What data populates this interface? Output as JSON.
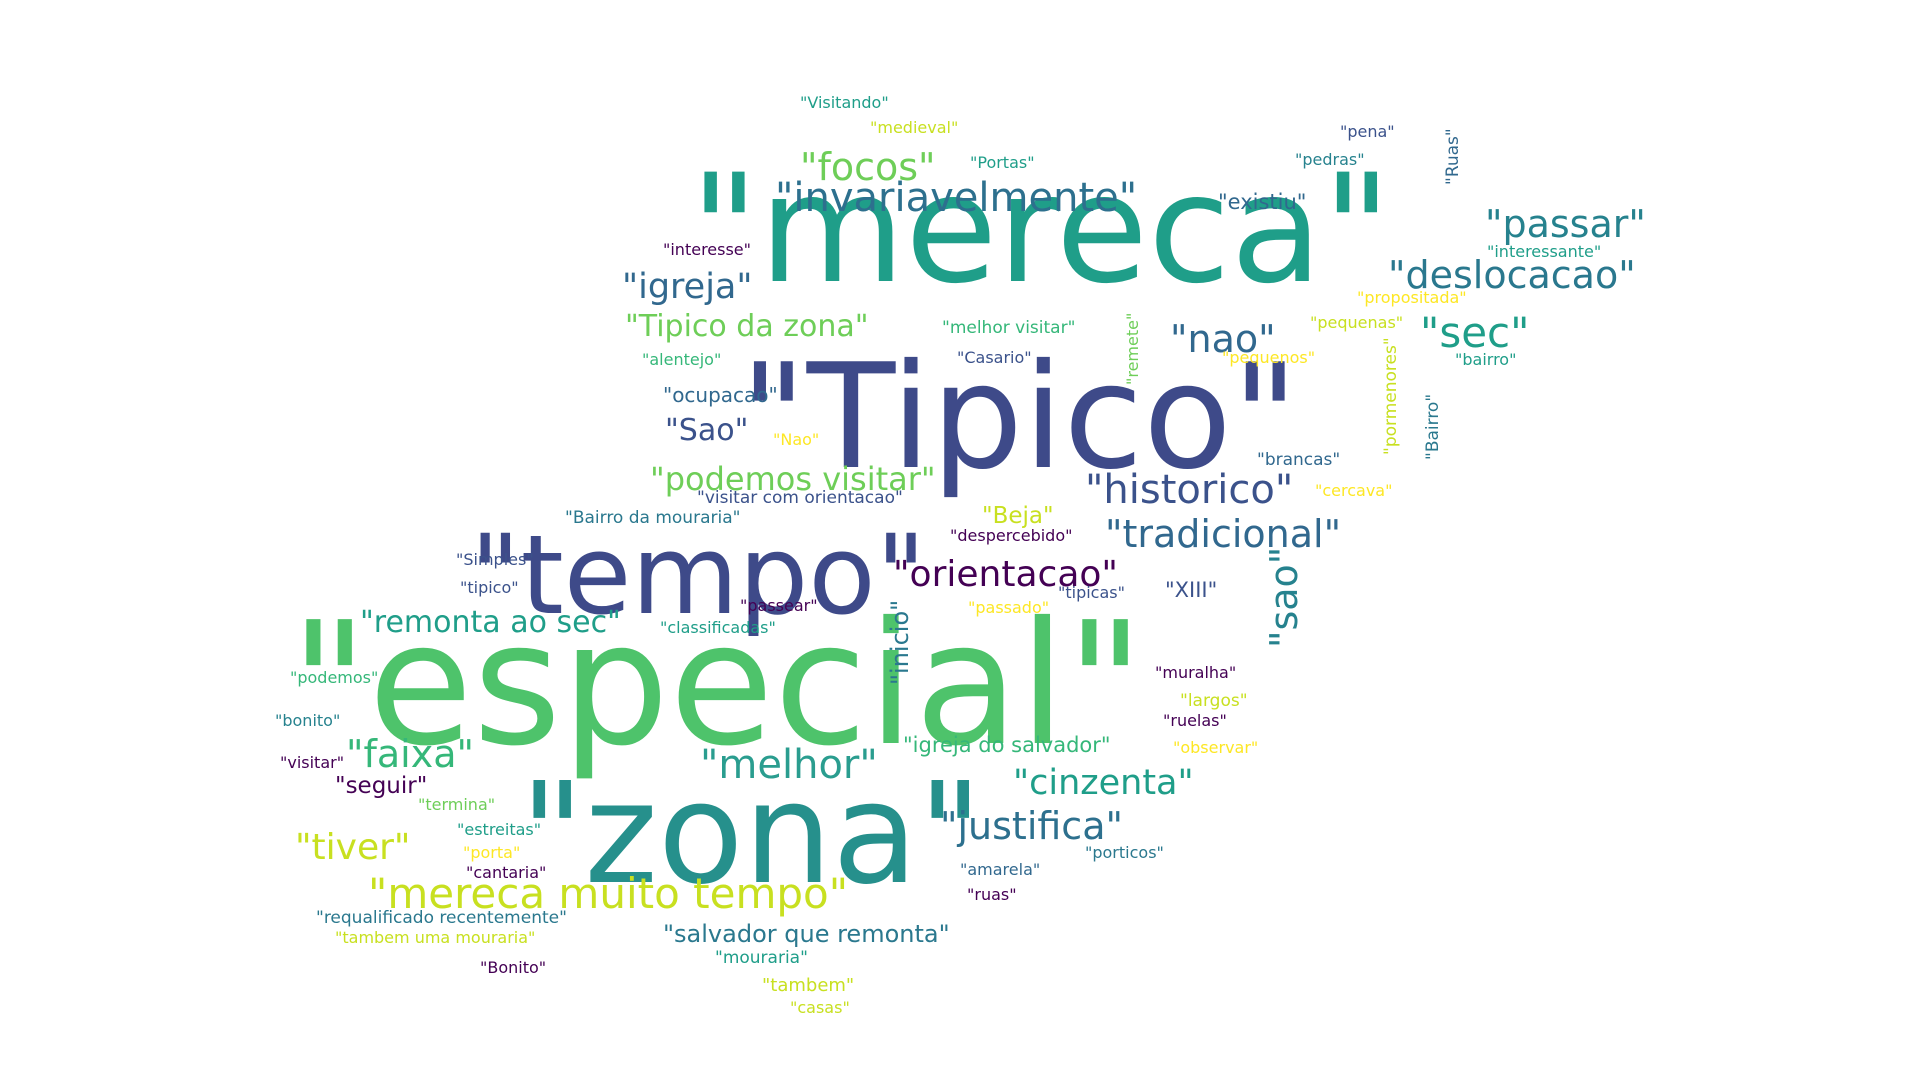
{
  "colors": {
    "dark_purple": "#440154",
    "indigo": "#3e4a89",
    "blue": "#31688e",
    "teal_blue": "#26828e",
    "teal": "#1f9e89",
    "green": "#35b779",
    "light_green": "#6ece58",
    "yellow_green": "#b5de2b",
    "yellow": "#fde725"
  },
  "words": [
    {
      "text": "\"mereca\"",
      "color": "#1f9e89"
    },
    {
      "text": "\"Tipico\"",
      "color": "#3e4a89"
    },
    {
      "text": "\"especial\"",
      "color": "#4ec36b"
    },
    {
      "text": "\"zona\"",
      "color": "#26908c"
    },
    {
      "text": "\"tempo\"",
      "color": "#3e4a89"
    },
    {
      "text": "\"invariavelmente\"",
      "color": "#2d708e"
    },
    {
      "text": "\"focos\"",
      "color": "#6ece58"
    },
    {
      "text": "\"igreja\"",
      "color": "#31688e"
    },
    {
      "text": "\"passar\"",
      "color": "#26828e"
    },
    {
      "text": "\"deslocacao\"",
      "color": "#2a788e"
    },
    {
      "text": "\"sec\"",
      "color": "#1f9e89"
    },
    {
      "text": "\"nao\"",
      "color": "#31688e"
    },
    {
      "text": "\"Tipico da zona\"",
      "color": "#6ece58"
    },
    {
      "text": "\"podemos visitar\"",
      "color": "#6ece58"
    },
    {
      "text": "\"historico\"",
      "color": "#3b528b"
    },
    {
      "text": "\"tradicional\"",
      "color": "#31688e"
    },
    {
      "text": "\"orientacao\"",
      "color": "#440154"
    },
    {
      "text": "\"remonta ao sec\"",
      "color": "#1f9e89"
    },
    {
      "text": "\"sao\"",
      "color": "#26828e"
    },
    {
      "text": "\"faixa\"",
      "color": "#35b779"
    },
    {
      "text": "\"melhor\"",
      "color": "#2a9d8f"
    },
    {
      "text": "\"cinzenta\"",
      "color": "#1f9e89"
    },
    {
      "text": "\"justifica\"",
      "color": "#2d708e"
    },
    {
      "text": "\"tiver\"",
      "color": "#c8e020"
    },
    {
      "text": "\"mereca muito tempo\"",
      "color": "#c8e020"
    },
    {
      "text": "\"salvador que remonta\"",
      "color": "#2a788e"
    },
    {
      "text": "\"Sao\"",
      "color": "#3b528b"
    },
    {
      "text": "\"ocupacao\"",
      "color": "#31688e"
    },
    {
      "text": "\"seguir\"",
      "color": "#440154"
    },
    {
      "text": "\"igreja do salvador\"",
      "color": "#35b779"
    },
    {
      "text": "\"Beja\"",
      "color": "#c8e020"
    },
    {
      "text": "\"XIII\"",
      "color": "#3b528b"
    },
    {
      "text": "\"inicio\"",
      "color": "#2a788e"
    },
    {
      "text": "\"Visitando\"",
      "color": "#1f9e89"
    },
    {
      "text": "\"medieval\"",
      "color": "#c8e020"
    },
    {
      "text": "\"Portas\"",
      "color": "#1f9e89"
    },
    {
      "text": "\"existiu\"",
      "color": "#31688e"
    },
    {
      "text": "\"pena\"",
      "color": "#3b528b"
    },
    {
      "text": "\"pedras\"",
      "color": "#26828e"
    },
    {
      "text": "\"Ruas\"",
      "color": "#31688e"
    },
    {
      "text": "\"interesse\"",
      "color": "#440154"
    },
    {
      "text": "\"interessante\"",
      "color": "#1f9e89"
    },
    {
      "text": "\"propositada\"",
      "color": "#fde725"
    },
    {
      "text": "\"melhor visitar\"",
      "color": "#35b779"
    },
    {
      "text": "\"pequenas\"",
      "color": "#c8e020"
    },
    {
      "text": "\"pequenos\"",
      "color": "#fde725"
    },
    {
      "text": "\"bairro\"",
      "color": "#1f9e89"
    },
    {
      "text": "\"alentejo\"",
      "color": "#35b779"
    },
    {
      "text": "\"Casario\"",
      "color": "#3b528b"
    },
    {
      "text": "\"remete\"",
      "color": "#6ece58"
    },
    {
      "text": "\"pormenores\"",
      "color": "#c8e020"
    },
    {
      "text": "\"Bairro\"",
      "color": "#2a788e"
    },
    {
      "text": "\"Nao\"",
      "color": "#fde725"
    },
    {
      "text": "\"brancas\"",
      "color": "#31688e"
    },
    {
      "text": "\"cercava\"",
      "color": "#fde725"
    },
    {
      "text": "\"visitar com orientacao\"",
      "color": "#3b528b"
    },
    {
      "text": "\"Bairro da mouraria\"",
      "color": "#2a788e"
    },
    {
      "text": "\"despercebido\"",
      "color": "#440154"
    },
    {
      "text": "\"Simples\"",
      "color": "#3b528b"
    },
    {
      "text": "\"tipico\"",
      "color": "#3b528b"
    },
    {
      "text": "\"passear\"",
      "color": "#440154"
    },
    {
      "text": "\"tipicas\"",
      "color": "#3b528b"
    },
    {
      "text": "\"passado\"",
      "color": "#fde725"
    },
    {
      "text": "\"classificadas\"",
      "color": "#1f9e89"
    },
    {
      "text": "\"podemos\"",
      "color": "#35b779"
    },
    {
      "text": "\"muralha\"",
      "color": "#440154"
    },
    {
      "text": "\"bonito\"",
      "color": "#26828e"
    },
    {
      "text": "\"largos\"",
      "color": "#c8e020"
    },
    {
      "text": "\"ruelas\"",
      "color": "#440154"
    },
    {
      "text": "\"visitar\"",
      "color": "#440154"
    },
    {
      "text": "\"observar\"",
      "color": "#fde725"
    },
    {
      "text": "\"termina\"",
      "color": "#6ece58"
    },
    {
      "text": "\"estreitas\"",
      "color": "#1f9e89"
    },
    {
      "text": "\"porta\"",
      "color": "#fde725"
    },
    {
      "text": "\"cantaria\"",
      "color": "#440154"
    },
    {
      "text": "\"porticos\"",
      "color": "#2a788e"
    },
    {
      "text": "\"amarela\"",
      "color": "#31688e"
    },
    {
      "text": "\"ruas\"",
      "color": "#440154"
    },
    {
      "text": "\"requalificado recentemente\"",
      "color": "#2a788e"
    },
    {
      "text": "\"tambem uma mouraria\"",
      "color": "#c8e020"
    },
    {
      "text": "\"mouraria\"",
      "color": "#1f9e89"
    },
    {
      "text": "\"Bonito\"",
      "color": "#440154"
    },
    {
      "text": "\"tambem\"",
      "color": "#c8e020"
    },
    {
      "text": "\"casas\"",
      "color": "#c8e020"
    }
  ]
}
